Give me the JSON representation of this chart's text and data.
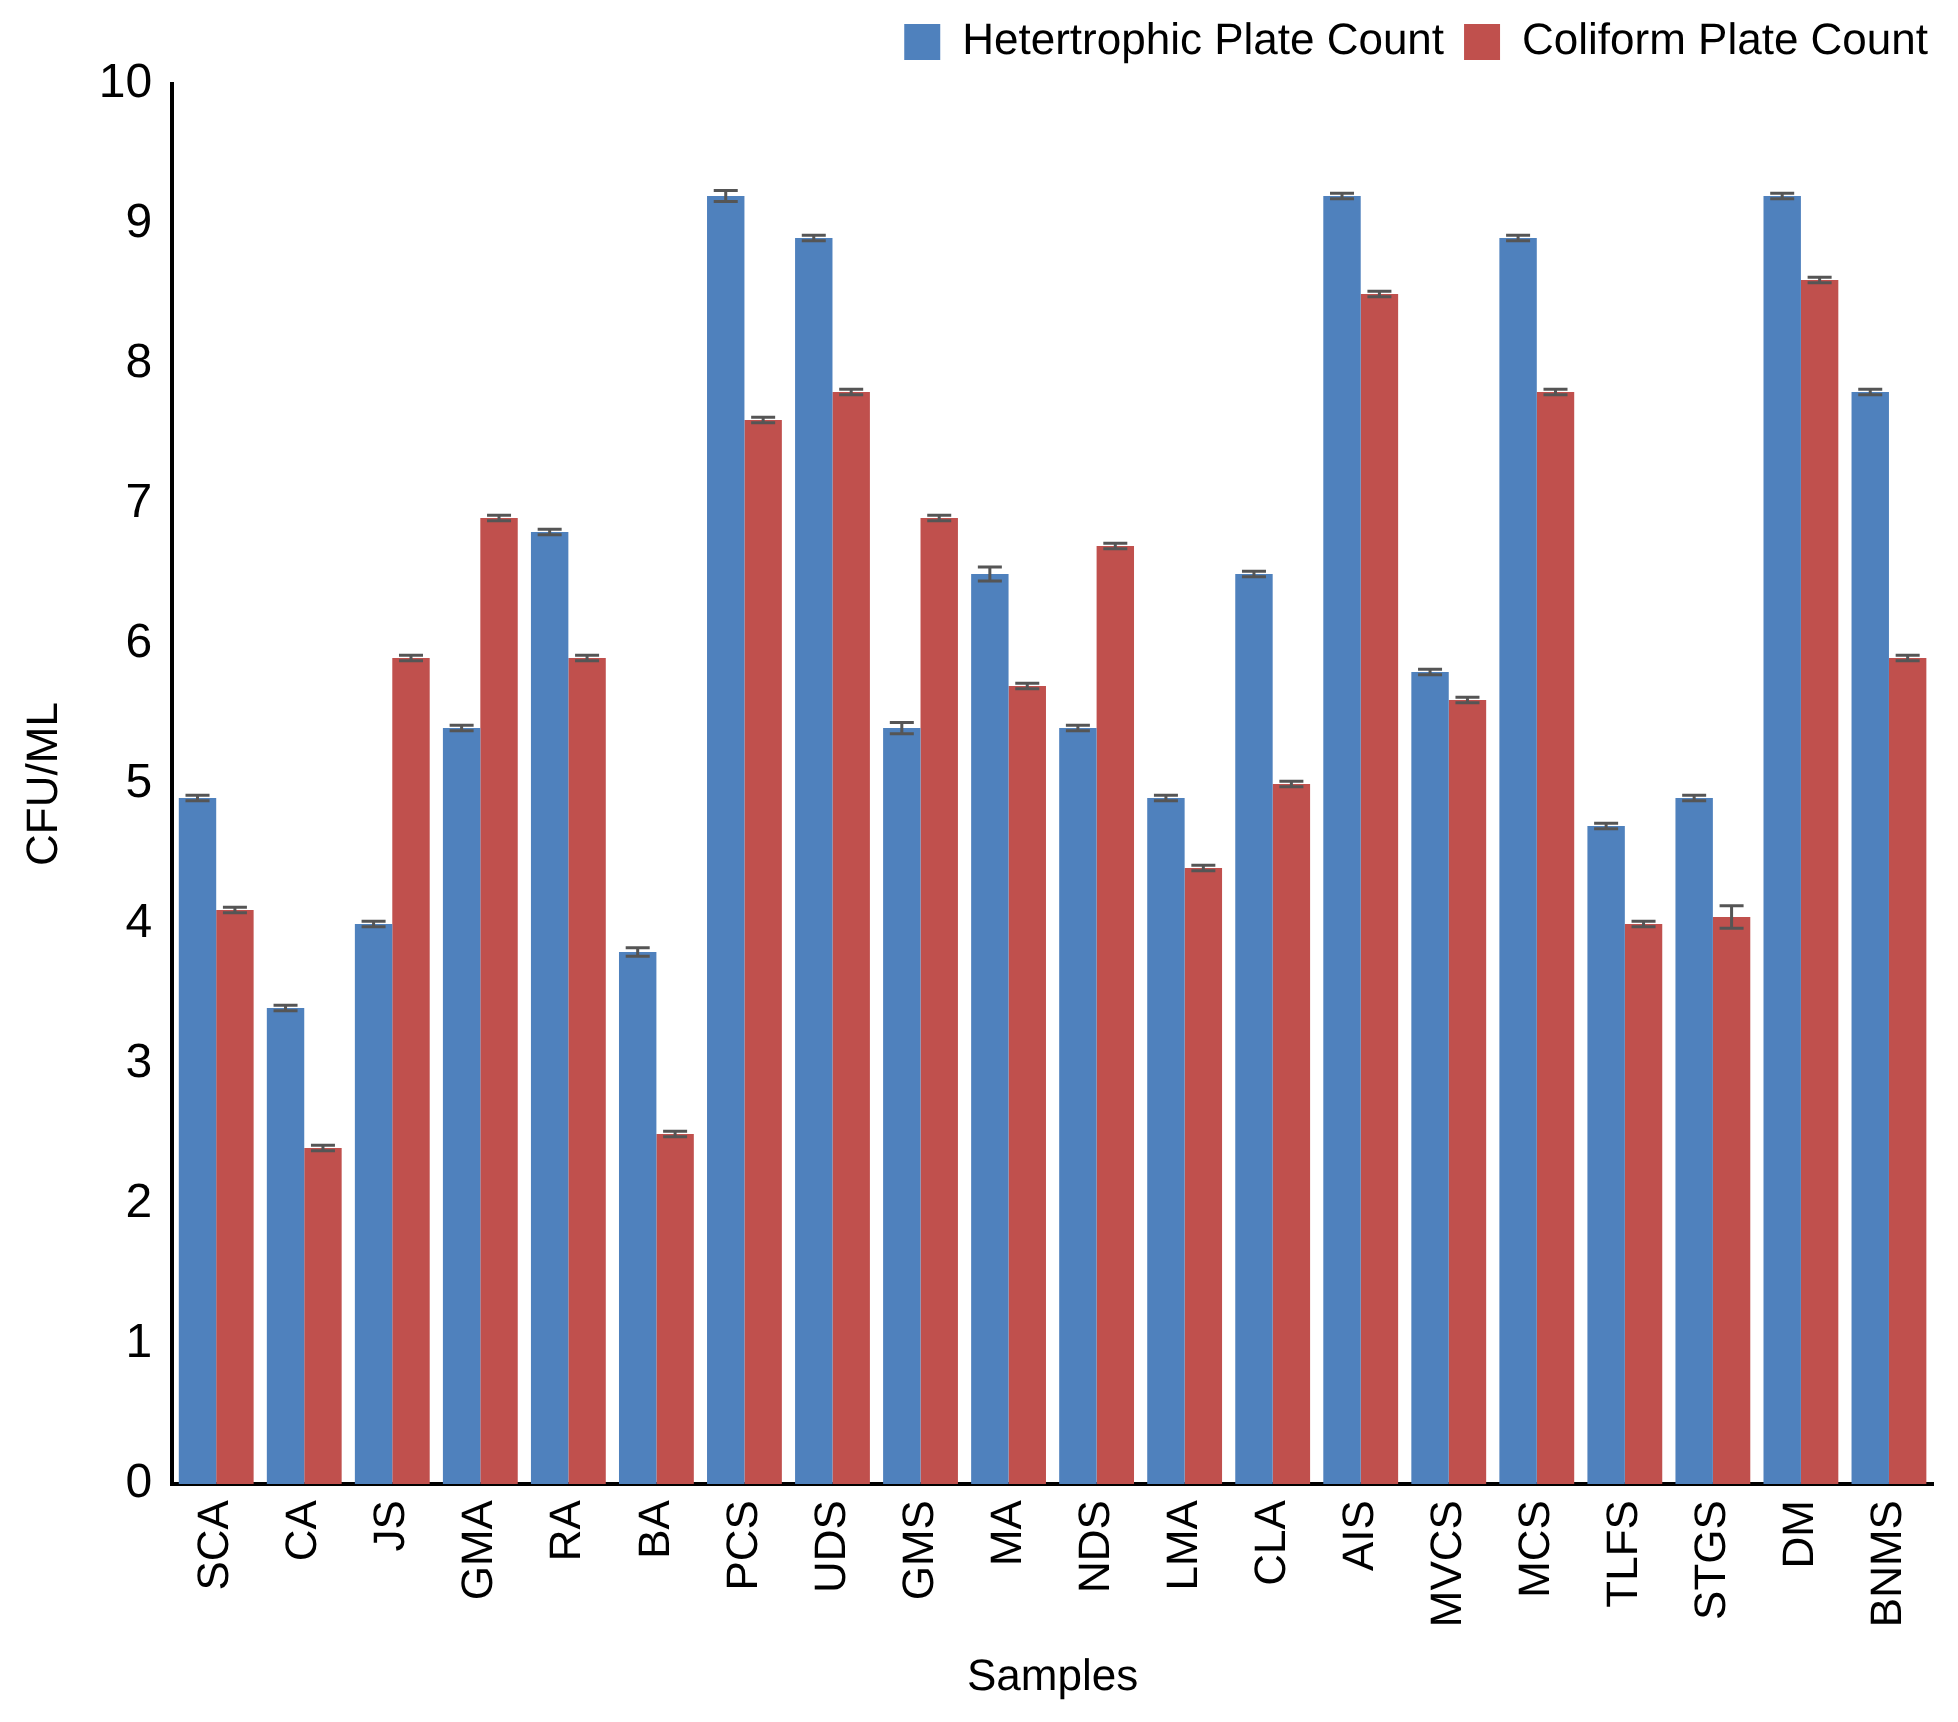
{
  "chart_data": {
    "type": "bar",
    "xlabel": "Samples",
    "ylabel": "CFU/ML",
    "categories": [
      "SCA",
      "CA",
      "JS",
      "GMA",
      "RA",
      "BA",
      "PCS",
      "UDS",
      "GMS",
      "MA",
      "NDS",
      "LMA",
      "CLA",
      "AIS",
      "MVCS",
      "MCS",
      "TLFS",
      "STGS",
      "DM",
      "BNMS"
    ],
    "series": [
      {
        "name": "Hetertrophic Plate Count",
        "color": "#4f81bd",
        "values": [
          4.9,
          3.4,
          4.0,
          5.4,
          6.8,
          3.8,
          9.2,
          8.9,
          5.4,
          6.5,
          5.4,
          4.9,
          6.5,
          9.2,
          5.8,
          8.9,
          4.7,
          4.9,
          9.2,
          7.8
        ],
        "errors": [
          0.02,
          0.02,
          0.02,
          0.02,
          0.02,
          0.03,
          0.04,
          0.02,
          0.04,
          0.05,
          0.02,
          0.02,
          0.02,
          0.02,
          0.02,
          0.02,
          0.02,
          0.02,
          0.02,
          0.02
        ]
      },
      {
        "name": "Coliform Plate Count",
        "color": "#c0504d",
        "values": [
          4.1,
          2.4,
          5.9,
          6.9,
          5.9,
          2.5,
          7.6,
          7.8,
          6.9,
          5.7,
          6.7,
          4.4,
          5.0,
          8.5,
          5.6,
          7.8,
          4.0,
          4.05,
          8.6,
          5.9
        ],
        "errors": [
          0.02,
          0.02,
          0.02,
          0.02,
          0.02,
          0.02,
          0.02,
          0.02,
          0.02,
          0.02,
          0.02,
          0.02,
          0.02,
          0.02,
          0.02,
          0.02,
          0.02,
          0.08,
          0.02,
          0.02
        ]
      }
    ],
    "ylim": [
      0,
      10
    ],
    "yticks": [
      0,
      1,
      2,
      3,
      4,
      5,
      6,
      7,
      8,
      9,
      10
    ],
    "grid": false,
    "legend": "top right"
  }
}
